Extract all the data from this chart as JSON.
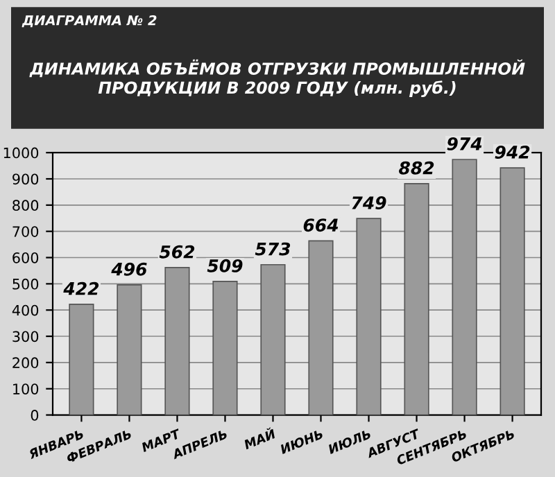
{
  "chart_data": {
    "type": "bar",
    "title": "ДИНАМИКА ОБЪЁМОВ ОТГРУЗКИ ПРОМЫШЛЕННОЙ ПРОДУКЦИИ В 2009 ГОДУ (млн. руб.)",
    "subtitle": "ДИАГРАММА № 2",
    "categories": [
      "ЯНВАРЬ",
      "ФЕВРАЛЬ",
      "МАРТ",
      "АПРЕЛЬ",
      "МАЙ",
      "ИЮНЬ",
      "ИЮЛЬ",
      "АВГУСТ",
      "СЕНТЯБРЬ",
      "ОКТЯБРЬ"
    ],
    "values": [
      422,
      496,
      562,
      509,
      573,
      664,
      749,
      882,
      974,
      942
    ],
    "color": "#9a9a9a",
    "ylim": [
      0,
      1000
    ],
    "yticks": [
      0,
      100,
      200,
      300,
      400,
      500,
      600,
      700,
      800,
      900,
      1000
    ],
    "grid": "y",
    "data_labels": true
  }
}
